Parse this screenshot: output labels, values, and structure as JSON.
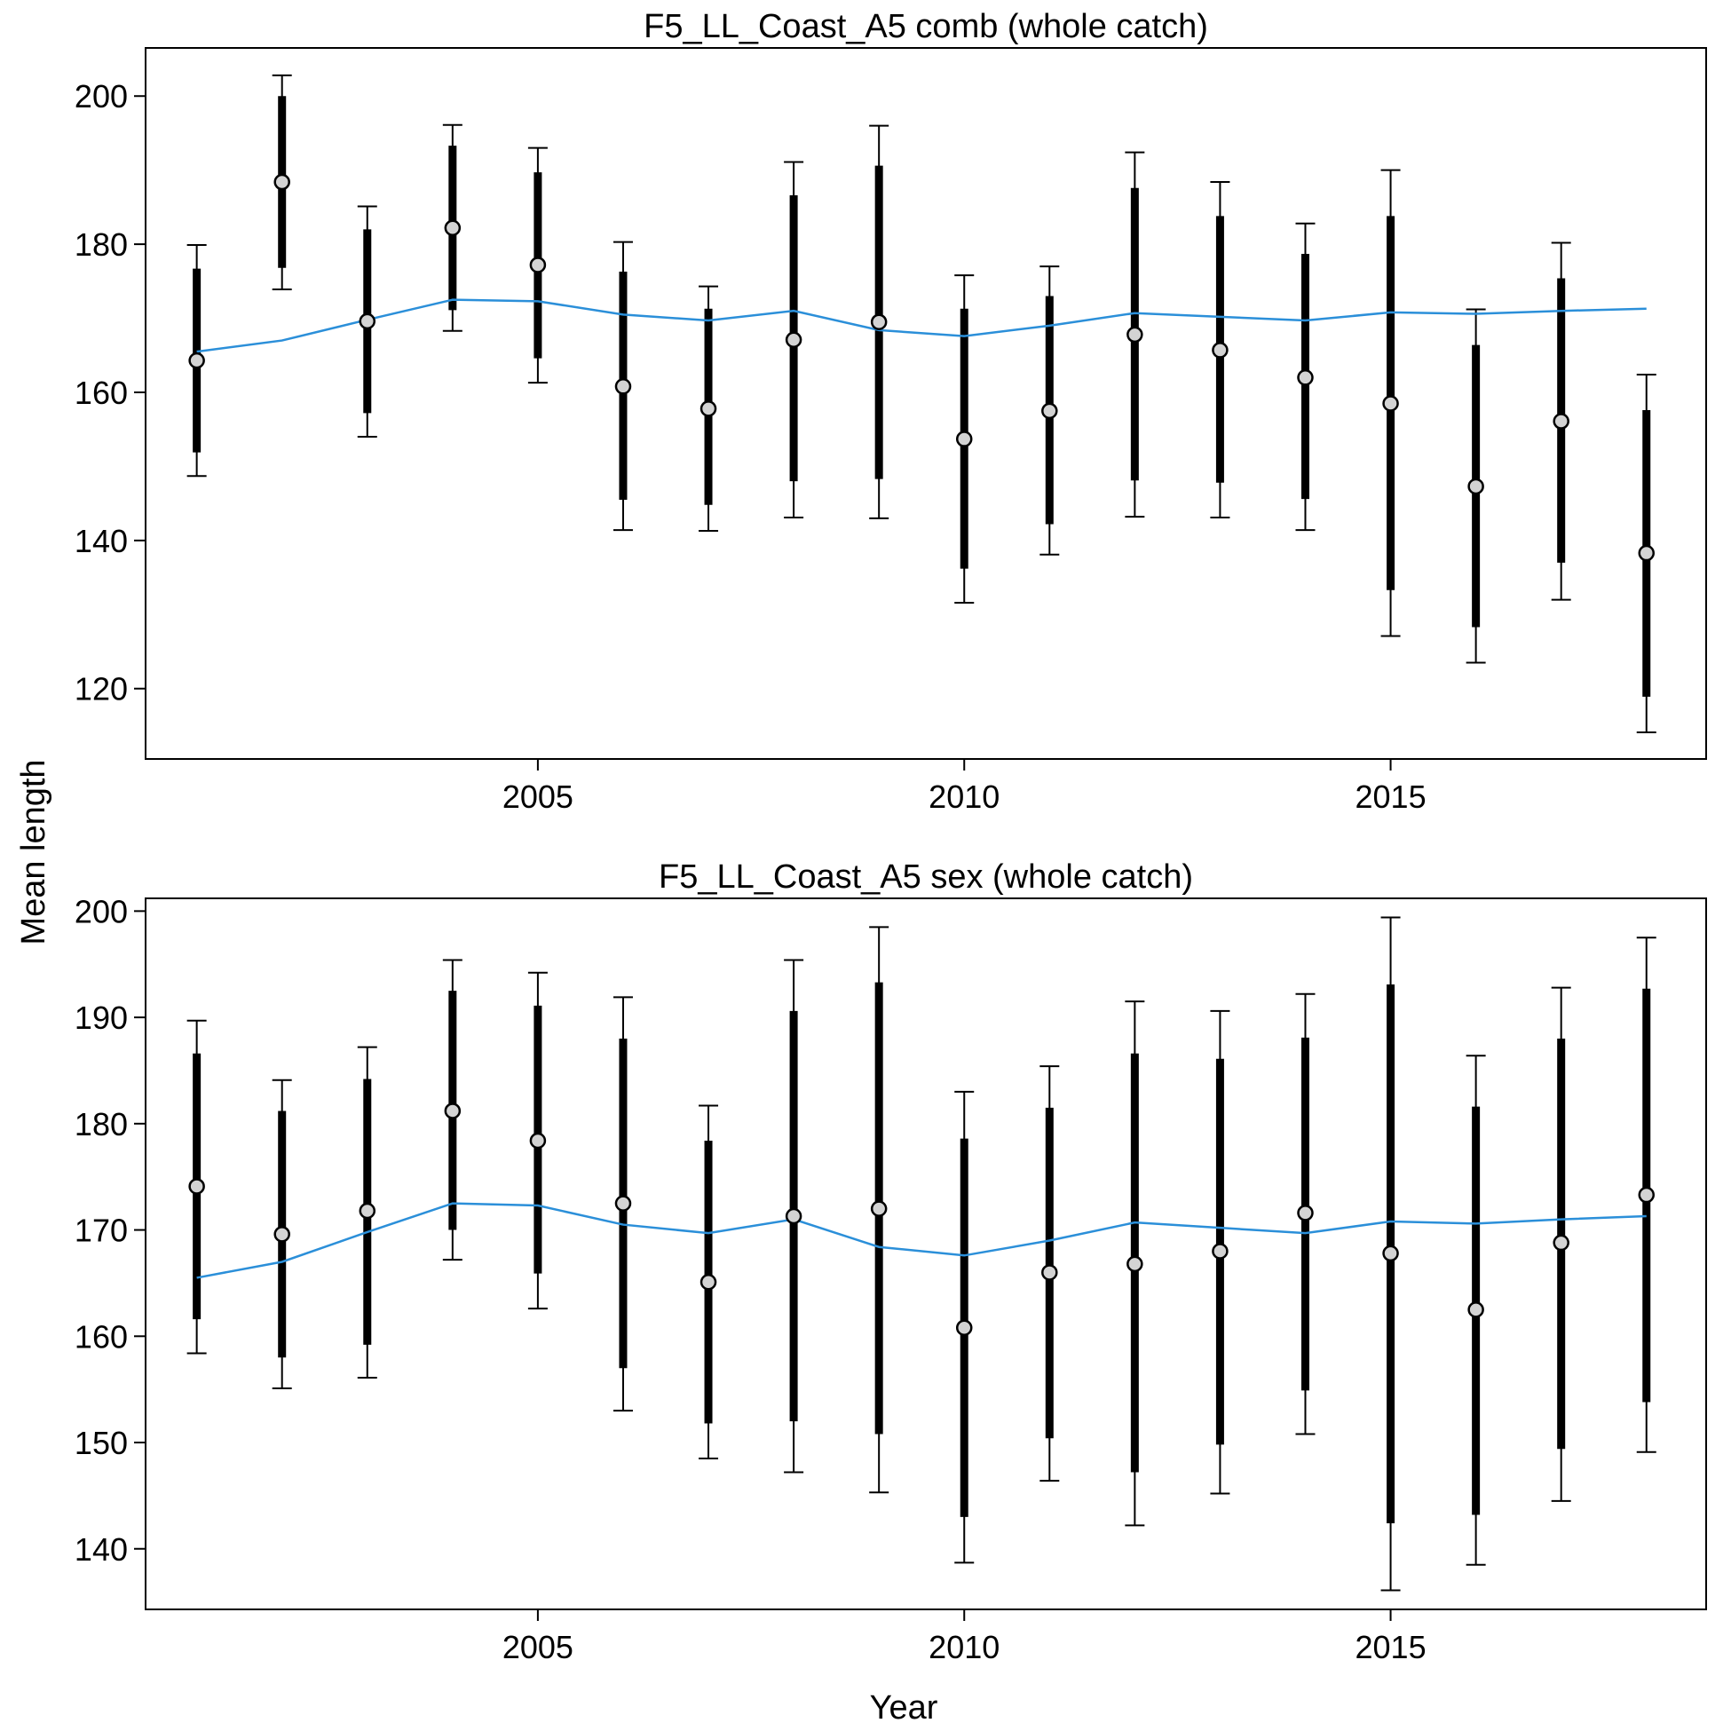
{
  "figure": {
    "ylabel": "Mean length",
    "xlabel": "Year"
  },
  "chart_data": [
    {
      "type": "line",
      "title": "F5_LL_Coast_A5 comb (whole catch)",
      "xlabel": "Year",
      "ylabel": "Mean length",
      "x_ticks": [
        2005,
        2010,
        2015
      ],
      "y_ticks": [
        120,
        140,
        160,
        180,
        200
      ],
      "xlim": [
        2000.4,
        2018.7
      ],
      "ylim": [
        110.5,
        206.5
      ],
      "grid": false,
      "line_color": "#2b8fd9",
      "series": [
        {
          "type": "points_with_error_bars",
          "years": [
            2001,
            2002,
            2003,
            2004,
            2005,
            2006,
            2007,
            2008,
            2009,
            2010,
            2011,
            2012,
            2013,
            2014,
            2015,
            2016,
            2017,
            2018
          ],
          "values": [
            164.3,
            188.4,
            169.6,
            182.2,
            177.2,
            160.8,
            157.8,
            167.1,
            169.5,
            153.7,
            157.5,
            167.8,
            165.7,
            162.0,
            158.5,
            147.3,
            156.1,
            138.3
          ],
          "inner_low": [
            151.9,
            176.8,
            157.2,
            171.1,
            164.6,
            145.5,
            144.8,
            148.0,
            148.3,
            136.2,
            142.2,
            148.1,
            147.8,
            145.6,
            133.3,
            128.3,
            137.0,
            118.9
          ],
          "inner_high": [
            176.7,
            200.0,
            182.0,
            193.3,
            189.7,
            176.3,
            171.3,
            186.6,
            190.6,
            171.3,
            173.0,
            187.6,
            183.8,
            178.7,
            183.8,
            166.4,
            175.4,
            157.6
          ],
          "outer_low": [
            148.7,
            173.9,
            154.0,
            168.3,
            161.3,
            141.4,
            141.3,
            143.1,
            143.0,
            131.6,
            138.1,
            143.2,
            143.1,
            141.4,
            127.1,
            123.5,
            132.0,
            114.1
          ],
          "outer_high": [
            179.9,
            202.8,
            185.1,
            196.1,
            193.0,
            180.3,
            174.3,
            191.1,
            196.0,
            175.8,
            177.0,
            192.4,
            188.4,
            182.8,
            190.0,
            171.2,
            180.2,
            162.4
          ]
        },
        {
          "type": "line",
          "years": [
            2001,
            2002,
            2003,
            2004,
            2005,
            2006,
            2007,
            2008,
            2009,
            2010,
            2011,
            2012,
            2013,
            2014,
            2015,
            2016,
            2017,
            2018
          ],
          "values": [
            165.5,
            167.0,
            169.8,
            172.5,
            172.3,
            170.5,
            169.7,
            171.0,
            168.4,
            167.6,
            169.0,
            170.7,
            170.2,
            169.7,
            170.8,
            170.6,
            171.0,
            171.3
          ]
        }
      ]
    },
    {
      "type": "line",
      "title": "F5_LL_Coast_A5 sex (whole catch)",
      "xlabel": "Year",
      "ylabel": "Mean length",
      "x_ticks": [
        2005,
        2010,
        2015
      ],
      "y_ticks": [
        140,
        150,
        160,
        170,
        180,
        190,
        200
      ],
      "xlim": [
        2000.4,
        2018.7
      ],
      "ylim": [
        134.3,
        201.2
      ],
      "grid": false,
      "line_color": "#2b8fd9",
      "series": [
        {
          "type": "points_with_error_bars",
          "years": [
            2001,
            2002,
            2003,
            2004,
            2005,
            2006,
            2007,
            2008,
            2009,
            2010,
            2011,
            2012,
            2013,
            2014,
            2015,
            2016,
            2017,
            2018
          ],
          "values": [
            174.1,
            169.6,
            171.8,
            181.2,
            178.4,
            172.5,
            165.1,
            171.3,
            172.0,
            160.8,
            166.0,
            166.8,
            168.0,
            171.6,
            167.8,
            162.5,
            168.8,
            173.3
          ],
          "inner_low": [
            161.6,
            158.0,
            159.2,
            170.0,
            165.9,
            157.0,
            151.8,
            152.0,
            150.8,
            143.0,
            150.4,
            147.2,
            149.8,
            154.9,
            142.4,
            143.2,
            149.4,
            153.8
          ],
          "inner_high": [
            186.6,
            181.2,
            184.2,
            192.5,
            191.1,
            188.0,
            178.4,
            190.6,
            193.3,
            178.6,
            181.5,
            186.6,
            186.1,
            188.1,
            193.1,
            181.6,
            188.0,
            192.7
          ],
          "outer_low": [
            158.4,
            155.1,
            156.1,
            167.2,
            162.6,
            153.0,
            148.5,
            147.2,
            145.3,
            138.7,
            146.4,
            142.2,
            145.2,
            150.8,
            136.1,
            138.5,
            144.5,
            149.1
          ],
          "outer_high": [
            189.7,
            184.1,
            187.2,
            195.4,
            194.2,
            191.9,
            181.7,
            195.4,
            198.5,
            183.0,
            185.4,
            191.5,
            190.6,
            192.2,
            199.4,
            186.4,
            192.8,
            197.5
          ]
        },
        {
          "type": "line",
          "years": [
            2001,
            2002,
            2003,
            2004,
            2005,
            2006,
            2007,
            2008,
            2009,
            2010,
            2011,
            2012,
            2013,
            2014,
            2015,
            2016,
            2017,
            2018
          ],
          "values": [
            165.5,
            167.0,
            169.8,
            172.5,
            172.3,
            170.5,
            169.7,
            171.0,
            168.4,
            167.6,
            169.0,
            170.7,
            170.2,
            169.7,
            170.8,
            170.6,
            171.0,
            171.3
          ]
        }
      ]
    }
  ]
}
